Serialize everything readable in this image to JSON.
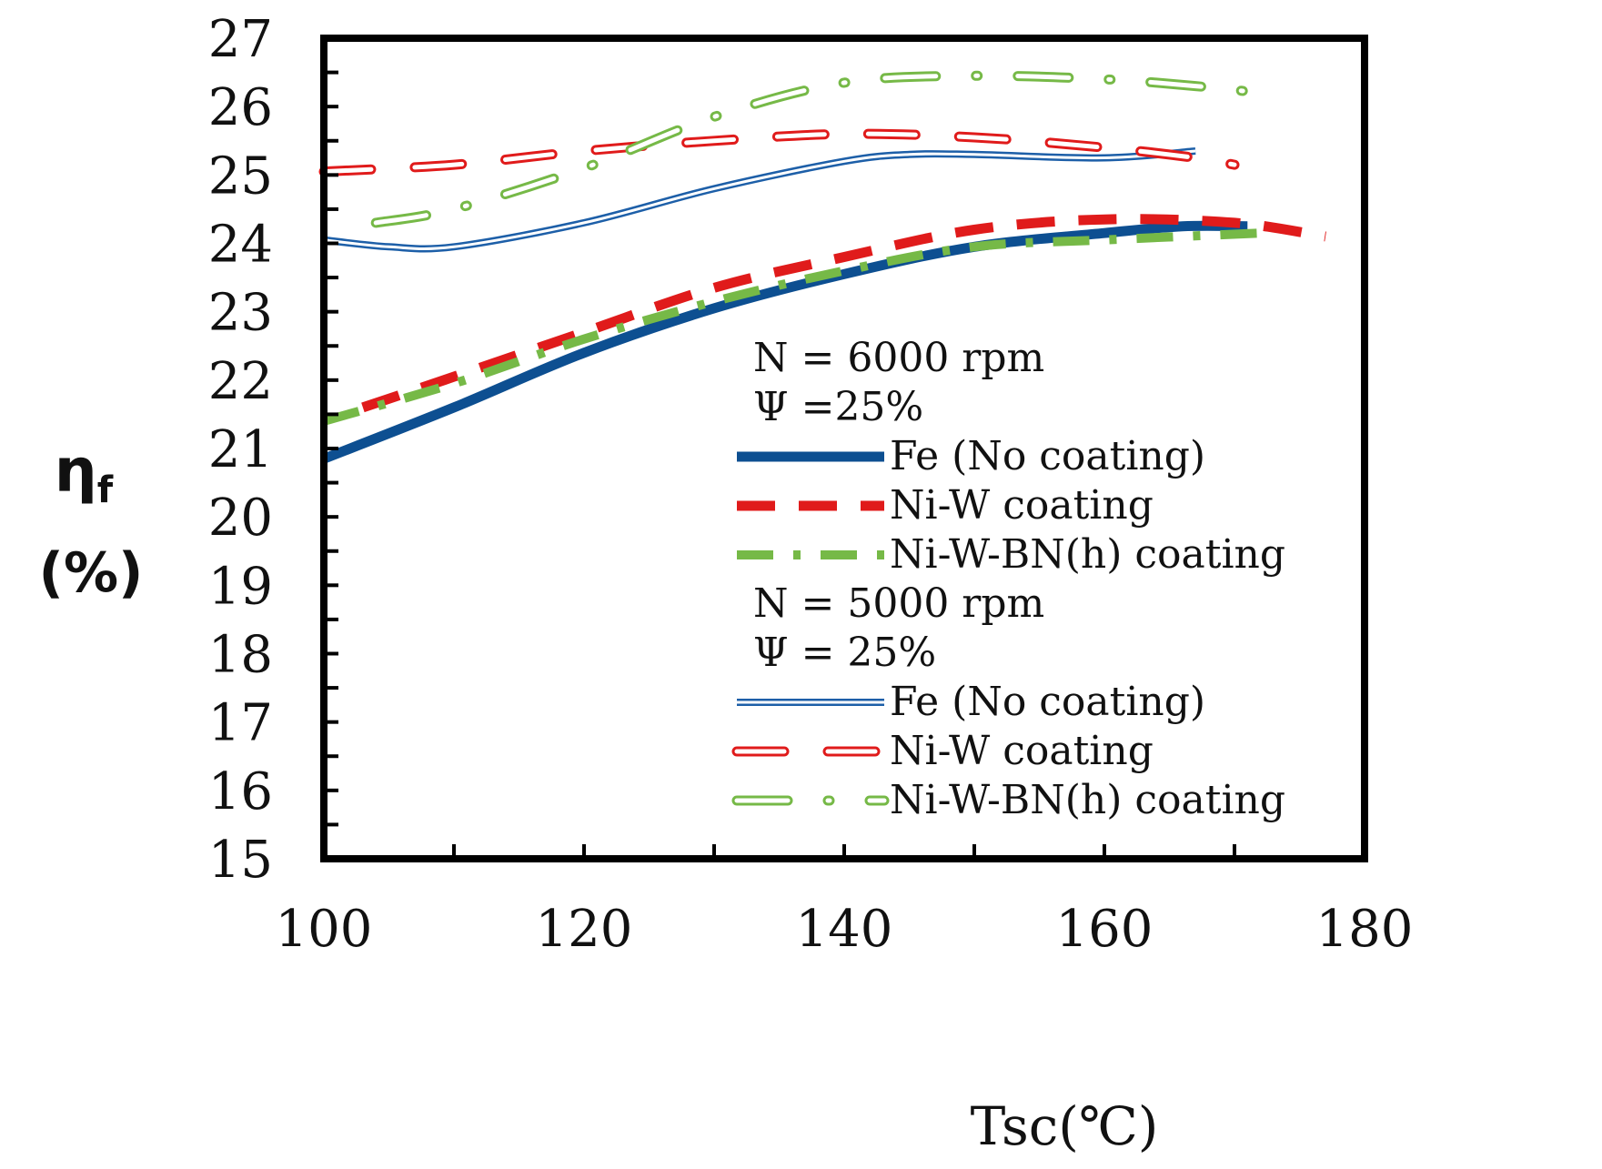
{
  "chart_data": {
    "type": "line",
    "title": "",
    "xlabel": "Tsc(℃)",
    "ylabel_symbol": "η",
    "ylabel_subscript": "f",
    "ylabel_unit": "(%)",
    "xlim": [
      100,
      180
    ],
    "ylim": [
      15,
      27
    ],
    "xticks": [
      100,
      120,
      140,
      160,
      180
    ],
    "yticks": [
      15,
      16,
      17,
      18,
      19,
      20,
      21,
      22,
      23,
      24,
      25,
      26,
      27
    ],
    "grid": false,
    "legend_position": "center-right",
    "legend_groups": [
      {
        "header_lines": [
          "N = 6000 rpm",
          "Ψ =25%"
        ],
        "entries": [
          {
            "label": "Fe (No coating)",
            "series": 0
          },
          {
            "label": "Ni-W coating",
            "series": 1
          },
          {
            "label": "Ni-W-BN(h) coating",
            "series": 2
          }
        ]
      },
      {
        "header_lines": [
          "N = 5000 rpm",
          "Ψ = 25%"
        ],
        "entries": [
          {
            "label": "Fe (No coating)",
            "series": 3
          },
          {
            "label": "Ni-W coating",
            "series": 4
          },
          {
            "label": "Ni-W-BN(h) coating",
            "series": 5
          }
        ]
      }
    ],
    "series": [
      {
        "name": "Fe (No coating) N=6000 rpm",
        "color": "#0d4f91",
        "style": "solid-thick",
        "x": [
          100,
          110,
          120,
          130,
          140,
          150,
          160,
          166,
          171
        ],
        "y": [
          20.85,
          21.6,
          22.4,
          23.05,
          23.55,
          23.95,
          24.15,
          24.25,
          24.25
        ]
      },
      {
        "name": "Ni-W coating N=6000 rpm",
        "color": "#e01b1b",
        "style": "dashed-thick",
        "x": [
          103,
          110,
          120,
          130,
          140,
          150,
          160,
          170,
          177
        ],
        "y": [
          21.6,
          22.05,
          22.7,
          23.35,
          23.8,
          24.2,
          24.35,
          24.3,
          24.1
        ]
      },
      {
        "name": "Ni-W-BN(h) coating N=6000 rpm",
        "color": "#76b947",
        "style": "dashdot-thick",
        "x": [
          100,
          110,
          120,
          130,
          140,
          150,
          160,
          172
        ],
        "y": [
          21.4,
          21.95,
          22.6,
          23.15,
          23.6,
          23.95,
          24.05,
          24.15
        ]
      },
      {
        "name": "Fe (No coating) N=5000 rpm",
        "color": "#1d5fa8",
        "style": "double-thin",
        "x": [
          100,
          105,
          110,
          120,
          130,
          140,
          145,
          150,
          160,
          167
        ],
        "y": [
          24.05,
          23.95,
          23.95,
          24.3,
          24.8,
          25.2,
          25.3,
          25.3,
          25.25,
          25.35
        ]
      },
      {
        "name": "Ni-W coating N=5000 rpm",
        "color": "#e01b1b",
        "style": "dashed-outline",
        "x": [
          100,
          110,
          120,
          130,
          140,
          150,
          160,
          167,
          170
        ],
        "y": [
          25.05,
          25.15,
          25.35,
          25.5,
          25.6,
          25.55,
          25.4,
          25.25,
          25.15
        ]
      },
      {
        "name": "Ni-W-BN(h) coating N=5000 rpm",
        "color": "#76b947",
        "style": "dashdot-outline",
        "x": [
          104,
          110,
          120,
          130,
          140,
          150,
          160,
          167,
          172
        ],
        "y": [
          24.3,
          24.5,
          25.1,
          25.85,
          26.35,
          26.45,
          26.4,
          26.3,
          26.2
        ]
      }
    ]
  }
}
